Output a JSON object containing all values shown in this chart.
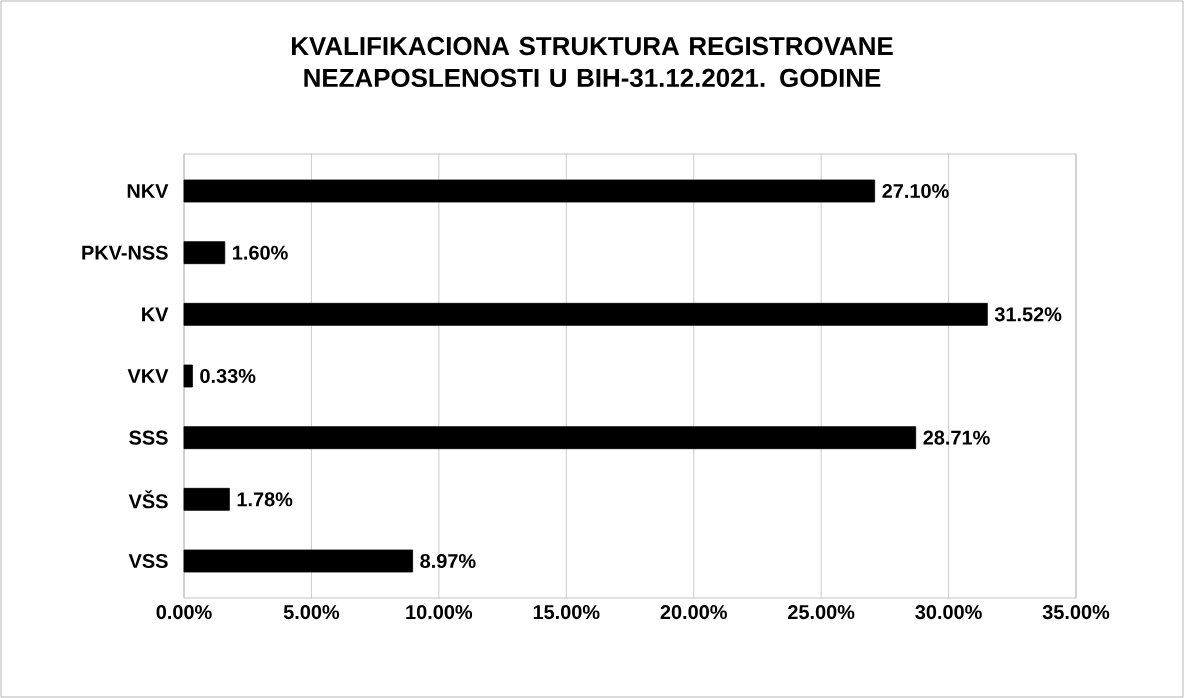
{
  "chart_data": {
    "type": "bar",
    "orientation": "horizontal",
    "title": "KVALIFIKACIONA STRUKTURA REGISTROVANE NEZAPOSLENOSTI U BIH-31.12.2021. GODINE",
    "categories": [
      "NKV",
      "PKV-NSS",
      "KV",
      "VKV",
      "SSS",
      "VŠS",
      "VSS"
    ],
    "values": [
      27.1,
      1.6,
      31.52,
      0.33,
      28.71,
      1.78,
      8.97
    ],
    "value_labels": [
      "27.10%",
      "1.60%",
      "31.52%",
      "0.33%",
      "28.71%",
      "1.78%",
      "8.97%"
    ],
    "color": "#000000",
    "xlim": [
      0,
      35
    ],
    "xticks": [
      {
        "value": 0,
        "label": "0.00%"
      },
      {
        "value": 5,
        "label": "5.00%"
      },
      {
        "value": 10,
        "label": "10.00%"
      },
      {
        "value": 15,
        "label": "15.00%"
      },
      {
        "value": 20,
        "label": "20.00%"
      },
      {
        "value": 25,
        "label": "25.00%"
      },
      {
        "value": 30,
        "label": "30.00%"
      },
      {
        "value": 35,
        "label": "35.00%"
      }
    ],
    "grid": "x"
  }
}
